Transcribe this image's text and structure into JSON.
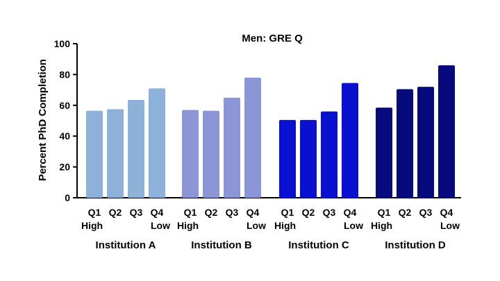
{
  "chart_data": {
    "type": "bar",
    "title": "Men: GRE Q",
    "xlabel": "",
    "ylabel": "Percent PhD Completion",
    "ylim": [
      0,
      100
    ],
    "yticks": [
      0,
      20,
      40,
      60,
      80,
      100
    ],
    "grid": false,
    "groups": [
      {
        "name": "Institution A",
        "color": "#8eb1d9",
        "categories": [
          [
            "Q1",
            "High"
          ],
          [
            "Q2",
            ""
          ],
          [
            "Q3",
            ""
          ],
          [
            "Q4",
            "Low"
          ]
        ],
        "values": [
          56.5,
          57.5,
          63.5,
          71
        ]
      },
      {
        "name": "Institution B",
        "color": "#8c95d6",
        "categories": [
          [
            "Q1",
            "High"
          ],
          [
            "Q2",
            ""
          ],
          [
            "Q3",
            ""
          ],
          [
            "Q4",
            "Low"
          ]
        ],
        "values": [
          57,
          56.5,
          65,
          78
        ]
      },
      {
        "name": "Institution C",
        "color": "#0a10d0",
        "categories": [
          [
            "Q1",
            "High"
          ],
          [
            "Q2",
            ""
          ],
          [
            "Q3",
            ""
          ],
          [
            "Q4",
            "Low"
          ]
        ],
        "values": [
          50.5,
          50.5,
          56,
          74.5
        ]
      },
      {
        "name": "Institution D",
        "color": "#070a7c",
        "categories": [
          [
            "Q1",
            "High"
          ],
          [
            "Q2",
            ""
          ],
          [
            "Q3",
            ""
          ],
          [
            "Q4",
            "Low"
          ]
        ],
        "values": [
          58.5,
          70.5,
          72,
          86
        ]
      }
    ]
  }
}
